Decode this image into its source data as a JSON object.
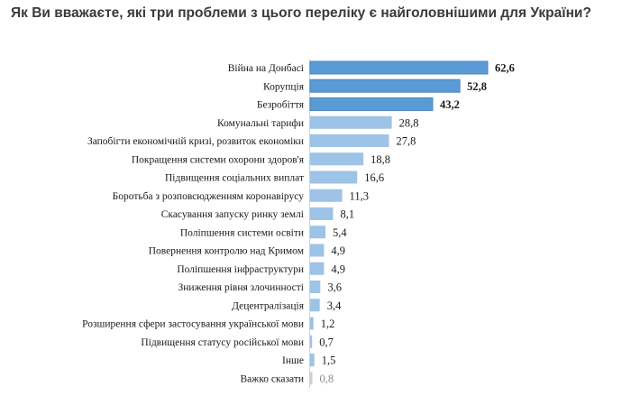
{
  "chart_data": {
    "type": "bar",
    "orientation": "horizontal",
    "title": "Як Ви вважаєте, які три проблеми з цього переліку є найголовнішими для України?",
    "categories": [
      "Війна на Донбасі",
      "Корупція",
      "Безробіття",
      "Комунальні тарифи",
      "Запобігти економічній кризі, розвиток економіки",
      "Покращення системи охорони здоров'я",
      "Підвищення соціальних виплат",
      "Боротьба з розповсюдженням коронавірусу",
      "Скасування запуску ринку землі",
      "Поліпшення системи освіти",
      "Повернення контролю над Кримом",
      "Поліпшення інфраструктури",
      "Зниження рівня злочинності",
      "Децентралізація",
      "Розширення сфери застосування української мови",
      "Підвищення статусу російської мови",
      "Інше",
      "Важко сказати"
    ],
    "value_labels": [
      "62,6",
      "52,8",
      "43,2",
      "28,8",
      "27,8",
      "18,8",
      "16,6",
      "11,3",
      "8,1",
      "5,4",
      "4,9",
      "4,9",
      "3,6",
      "3,4",
      "1,2",
      "0,7",
      "1,5",
      "0,8"
    ],
    "values": [
      62.6,
      52.8,
      43.2,
      28.8,
      27.8,
      18.8,
      16.6,
      11.3,
      8.1,
      5.4,
      4.9,
      4.9,
      3.6,
      3.4,
      1.2,
      0.7,
      1.5,
      0.8
    ],
    "highlight_count": 3,
    "colors": {
      "highlight": "#5b9bd5",
      "highlight_border": "#4a86bf",
      "normal": "#9dc3e6",
      "muted": "#cfcfcf"
    },
    "xlim": [
      0,
      62.6
    ]
  }
}
